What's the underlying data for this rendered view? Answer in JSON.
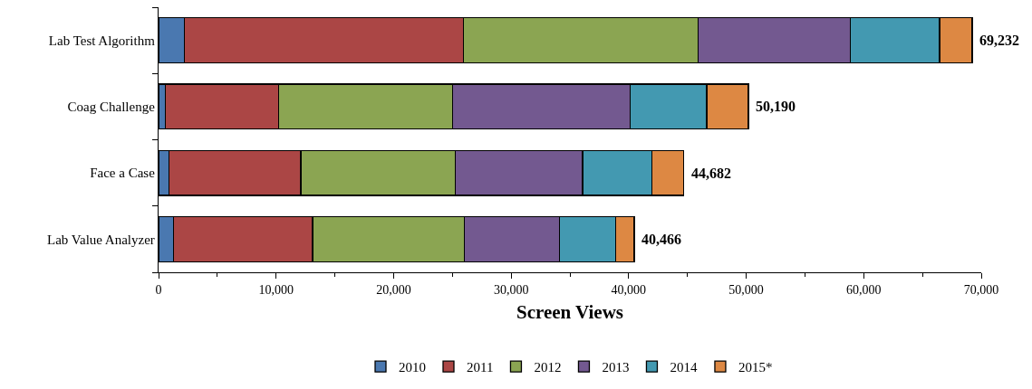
{
  "chart_data": {
    "type": "bar",
    "orientation": "horizontal",
    "stacked": true,
    "xlabel": "Screen Views",
    "categories": [
      "Lab Test Algorithm",
      "Coag Challenge",
      "Face a Case",
      "Lab Value Analyzer"
    ],
    "series": [
      {
        "name": "2010",
        "color": "#4a78b0",
        "values": [
          2190,
          590,
          880,
          1260
        ]
      },
      {
        "name": "2011",
        "color": "#ab4645",
        "values": [
          23740,
          9600,
          11220,
          11840
        ]
      },
      {
        "name": "2012",
        "color": "#8ba552",
        "values": [
          19970,
          14830,
          13130,
          12930
        ]
      },
      {
        "name": "2013",
        "color": "#735990",
        "values": [
          12980,
          15130,
          10860,
          8080
        ]
      },
      {
        "name": "2014",
        "color": "#4399b1",
        "values": [
          7580,
          6500,
          5880,
          4770
        ]
      },
      {
        "name": "2015*",
        "color": "#dd8843",
        "values": [
          2772,
          3540,
          2712,
          1586
        ]
      }
    ],
    "totals": [
      "69,232",
      "50,190",
      "44,682",
      "40,466"
    ],
    "xlim": [
      0,
      70000
    ],
    "xticks": [
      0,
      {
        "value": 10000,
        "label": "10,000"
      },
      {
        "value": 20000,
        "label": "20,000"
      },
      {
        "value": 30000,
        "label": "30,000"
      },
      {
        "value": 40000,
        "label": "40,000"
      },
      {
        "value": 50000,
        "label": "50,000"
      },
      {
        "value": 60000,
        "label": "60,000"
      },
      {
        "value": 70000,
        "label": "70,000"
      }
    ],
    "grid": false,
    "legend": "bottom"
  }
}
